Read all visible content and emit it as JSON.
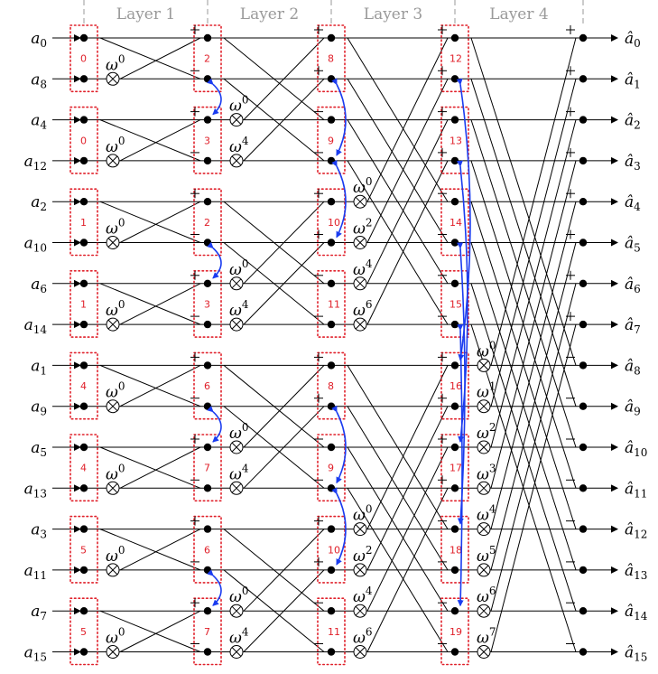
{
  "inputs": [
    "0",
    "8",
    "4",
    "12",
    "2",
    "10",
    "6",
    "14",
    "1",
    "9",
    "5",
    "13",
    "3",
    "11",
    "7",
    "15"
  ],
  "outputs": [
    "0",
    "1",
    "2",
    "3",
    "4",
    "5",
    "6",
    "7",
    "8",
    "9",
    "10",
    "11",
    "12",
    "13",
    "14",
    "15"
  ],
  "input_symbol": "a",
  "output_symbol": "â",
  "layers": [
    "Layer 1",
    "Layer 2",
    "Layer 3",
    "Layer 4"
  ],
  "omega_symbol": "ω",
  "box_numbers": {
    "layer1": [
      "0",
      "0",
      "1",
      "1",
      "4",
      "4",
      "5",
      "5"
    ],
    "layer2": [
      "2",
      "3",
      "2",
      "3",
      "6",
      "7",
      "6",
      "7"
    ],
    "layer3": [
      "8",
      "9",
      "10",
      "11",
      "8",
      "9",
      "10",
      "11"
    ],
    "layer4": [
      "12",
      "13",
      "14",
      "15",
      "16",
      "17",
      "18",
      "19"
    ]
  },
  "twiddles": {
    "layer1": [
      "0",
      "0",
      "0",
      "0",
      "0",
      "0",
      "0",
      "0"
    ],
    "layer2": [
      "0",
      "4",
      "0",
      "4",
      "0",
      "4",
      "0",
      "4"
    ],
    "layer3": [
      "0",
      "2",
      "4",
      "6",
      "0",
      "2",
      "4",
      "6"
    ],
    "layer4": [
      "0",
      "1",
      "2",
      "3",
      "4",
      "5",
      "6",
      "7"
    ]
  },
  "colors": {
    "boxes": "#e0202a",
    "swaps": "#1a3cf0",
    "layer_labels": "#9a9a9a"
  }
}
